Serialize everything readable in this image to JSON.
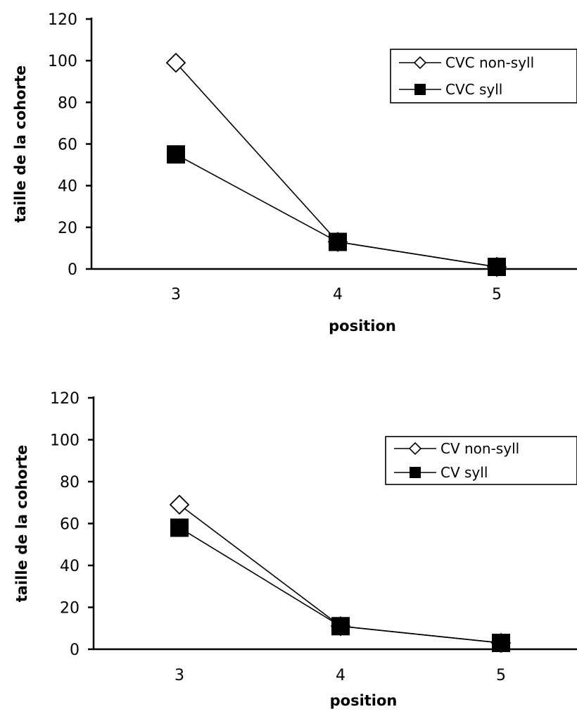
{
  "chart_data": [
    {
      "type": "line",
      "title": "",
      "xlabel": "position",
      "ylabel": "taille de la cohorte",
      "x": [
        "3",
        "4",
        "5"
      ],
      "ylim": [
        0,
        120
      ],
      "yticks": [
        "0",
        "20",
        "40",
        "60",
        "80",
        "100",
        "120"
      ],
      "legend_position": "top-right",
      "grid": false,
      "series": [
        {
          "name": "CVC non-syll",
          "marker": "open-diamond",
          "values": [
            99,
            13,
            1
          ]
        },
        {
          "name": "CVC syll",
          "marker": "filled-square",
          "values": [
            55,
            13,
            1
          ]
        }
      ]
    },
    {
      "type": "line",
      "title": "",
      "xlabel": "position",
      "ylabel": "taille de la cohorte",
      "x": [
        "3",
        "4",
        "5"
      ],
      "ylim": [
        0,
        120
      ],
      "yticks": [
        "0",
        "20",
        "40",
        "60",
        "80",
        "100",
        "120"
      ],
      "legend_position": "top-right",
      "grid": false,
      "series": [
        {
          "name": "CV non-syll",
          "marker": "open-diamond",
          "values": [
            69,
            11,
            3
          ]
        },
        {
          "name": "CV syll",
          "marker": "filled-square",
          "values": [
            58,
            11,
            3
          ]
        }
      ]
    }
  ]
}
